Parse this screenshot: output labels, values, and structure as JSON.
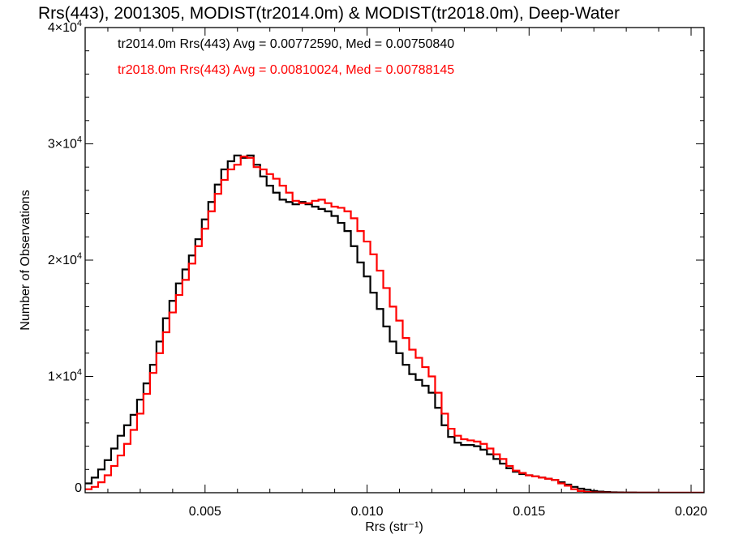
{
  "chart_data": {
    "type": "line",
    "title": "Rrs(443), 2001305, MODIST(tr2014.0m) & MODIST(tr2018.0m), Deep-Water",
    "xlabel": "Rrs (str⁻¹)",
    "ylabel": "Number of Observations",
    "xlim": [
      0.0013,
      0.0204
    ],
    "ylim": [
      0,
      40000
    ],
    "x_ticks": [
      0.005,
      0.01,
      0.015,
      0.02
    ],
    "x_tick_labels": [
      "0.005",
      "0.010",
      "0.015",
      "0.020"
    ],
    "y_ticks": [
      0,
      10000,
      20000,
      30000,
      40000
    ],
    "y_tick_labels": [
      {
        "base": "0",
        "exp": ""
      },
      {
        "base": "1×10",
        "exp": "4"
      },
      {
        "base": "2×10",
        "exp": "4"
      },
      {
        "base": "3×10",
        "exp": "4"
      },
      {
        "base": "4×10",
        "exp": "4"
      }
    ],
    "annotations": [
      {
        "text": "tr2014.0m Rrs(443) Avg = 0.00772590, Med = 0.00750840",
        "color": "#000000"
      },
      {
        "text": "tr2018.0m Rrs(443) Avg = 0.00810024, Med = 0.00788145",
        "color": "#ff0000"
      }
    ],
    "series": [
      {
        "color": "#000000",
        "x": [
          0.0013,
          0.0015,
          0.0017,
          0.0019,
          0.0021,
          0.0023,
          0.0025,
          0.0027,
          0.0029,
          0.0031,
          0.0033,
          0.0035,
          0.0037,
          0.0039,
          0.0041,
          0.0043,
          0.0045,
          0.0047,
          0.0049,
          0.0051,
          0.0053,
          0.0055,
          0.0057,
          0.0059,
          0.0061,
          0.0063,
          0.0065,
          0.0067,
          0.0069,
          0.0071,
          0.0073,
          0.0075,
          0.0077,
          0.0079,
          0.0081,
          0.0083,
          0.0085,
          0.0087,
          0.0089,
          0.0091,
          0.0093,
          0.0095,
          0.0097,
          0.0099,
          0.0101,
          0.0103,
          0.0105,
          0.0107,
          0.0109,
          0.0111,
          0.0113,
          0.0115,
          0.0117,
          0.0119,
          0.0121,
          0.0123,
          0.0125,
          0.0127,
          0.0129,
          0.0131,
          0.0133,
          0.0135,
          0.0137,
          0.0139,
          0.0141,
          0.0143,
          0.0145,
          0.0147,
          0.0149,
          0.0151,
          0.0153,
          0.0155,
          0.0157,
          0.0159,
          0.0161,
          0.0163,
          0.0165,
          0.0167,
          0.0169,
          0.0171,
          0.0173,
          0.0175,
          0.0177,
          0.0179,
          0.0181,
          0.0183,
          0.0185,
          0.019,
          0.02,
          0.0204
        ],
        "y": [
          800,
          1300,
          2000,
          2800,
          3800,
          4900,
          5800,
          6700,
          8000,
          9400,
          11000,
          13000,
          15000,
          16500,
          18000,
          19200,
          20400,
          21800,
          23500,
          25000,
          26500,
          27800,
          28500,
          29000,
          28800,
          29000,
          28200,
          27200,
          26400,
          25800,
          25200,
          25000,
          24800,
          25000,
          24800,
          24600,
          24400,
          24200,
          23800,
          23200,
          22500,
          21200,
          19800,
          18600,
          17200,
          15800,
          14300,
          13000,
          12000,
          11000,
          10200,
          9700,
          9200,
          8600,
          7300,
          5800,
          4800,
          4300,
          4100,
          4100,
          4000,
          3700,
          3300,
          2900,
          2500,
          2100,
          1800,
          1600,
          1500,
          1400,
          1300,
          1200,
          1100,
          900,
          700,
          500,
          350,
          250,
          150,
          100,
          60,
          40,
          30,
          20,
          15,
          10,
          8,
          5,
          2,
          0
        ]
      },
      {
        "color": "#ff0000",
        "x": [
          0.0013,
          0.0015,
          0.0017,
          0.0019,
          0.0021,
          0.0023,
          0.0025,
          0.0027,
          0.0029,
          0.0031,
          0.0033,
          0.0035,
          0.0037,
          0.0039,
          0.0041,
          0.0043,
          0.0045,
          0.0047,
          0.0049,
          0.0051,
          0.0053,
          0.0055,
          0.0057,
          0.0059,
          0.0061,
          0.0063,
          0.0065,
          0.0067,
          0.0069,
          0.0071,
          0.0073,
          0.0075,
          0.0077,
          0.0079,
          0.0081,
          0.0083,
          0.0085,
          0.0087,
          0.0089,
          0.0091,
          0.0093,
          0.0095,
          0.0097,
          0.0099,
          0.0101,
          0.0103,
          0.0105,
          0.0107,
          0.0109,
          0.0111,
          0.0113,
          0.0115,
          0.0117,
          0.0119,
          0.0121,
          0.0123,
          0.0125,
          0.0127,
          0.0129,
          0.0131,
          0.0133,
          0.0135,
          0.0137,
          0.0139,
          0.0141,
          0.0143,
          0.0145,
          0.0147,
          0.0149,
          0.0151,
          0.0153,
          0.0155,
          0.0157,
          0.0159,
          0.0161,
          0.0163,
          0.0165,
          0.0167,
          0.0169,
          0.0171,
          0.0173,
          0.0175,
          0.0177,
          0.0179,
          0.0181,
          0.0183,
          0.0185,
          0.019,
          0.02,
          0.0204
        ],
        "y": [
          300,
          500,
          900,
          1500,
          2300,
          3200,
          4200,
          5400,
          6800,
          8500,
          10300,
          12000,
          13800,
          15500,
          17000,
          18300,
          19700,
          21200,
          22700,
          24200,
          25700,
          26900,
          27800,
          28200,
          28900,
          28800,
          28000,
          27800,
          27400,
          27000,
          26400,
          25800,
          25100,
          24900,
          24900,
          25100,
          25200,
          24900,
          24600,
          24500,
          24200,
          23600,
          22500,
          21600,
          20500,
          19100,
          17600,
          16000,
          14800,
          13300,
          12300,
          11600,
          10800,
          10000,
          8600,
          6800,
          5500,
          4900,
          4600,
          4500,
          4400,
          4200,
          3800,
          3300,
          2900,
          2300,
          1900,
          1700,
          1500,
          1400,
          1300,
          1200,
          1100,
          800,
          600,
          300,
          150,
          60,
          30,
          15,
          10,
          5,
          0,
          0,
          0,
          0,
          0,
          0,
          0,
          0
        ]
      }
    ]
  }
}
